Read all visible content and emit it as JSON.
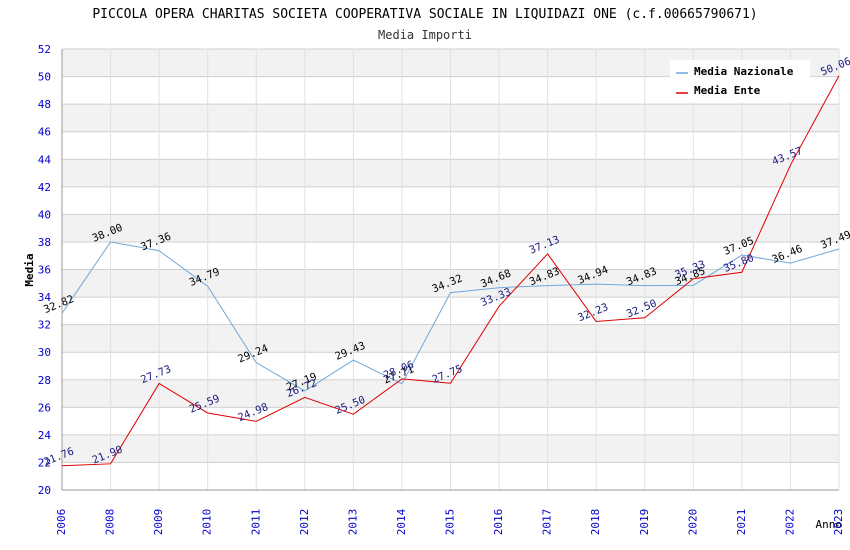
{
  "colors": {
    "nazionale": "#6fa8dc",
    "ente": "#e00000",
    "label_nazionale": "#000000",
    "label_ente": "#1a1a80",
    "axis_tick": "#0000cc",
    "band": "#f2f2f2"
  },
  "chart_data": {
    "type": "line",
    "title": "PICCOLA OPERA CHARITAS SOCIETA COOPERATIVA SOCIALE IN LIQUIDAZI ONE (c.f.00665790671)",
    "subtitle": "Media Importi",
    "xlabel": "Anno",
    "ylabel": "Media",
    "ylim": [
      20,
      52
    ],
    "ytick_step": 2,
    "grid": true,
    "legend_position": "top-right",
    "categories": [
      "2006",
      "2008",
      "2009",
      "2010",
      "2011",
      "2012",
      "2013",
      "2014",
      "2015",
      "2016",
      "2017",
      "2018",
      "2019",
      "2020",
      "2021",
      "2022",
      "2023"
    ],
    "series": [
      {
        "name": "Media Nazionale",
        "color_key": "nazionale",
        "label_color_key": "label_nazionale",
        "values": [
          32.82,
          38.0,
          37.36,
          34.79,
          29.24,
          27.19,
          29.43,
          27.71,
          34.32,
          34.68,
          34.83,
          34.94,
          34.83,
          34.85,
          37.05,
          36.46,
          37.49
        ],
        "labels": [
          "32.82",
          "38.00",
          "37.36",
          "34.79",
          "29.24",
          "27.19",
          "29.43",
          "27.71",
          "34.32",
          "34.68",
          "34.83",
          "34.94",
          "34.83",
          "34.85",
          "37.05",
          "36.46",
          "37.49"
        ]
      },
      {
        "name": "Media Ente",
        "color_key": "ente",
        "label_color_key": "label_ente",
        "values": [
          21.76,
          21.9,
          27.73,
          25.59,
          24.98,
          26.72,
          25.5,
          28.06,
          27.75,
          33.33,
          37.13,
          32.23,
          32.5,
          35.33,
          35.8,
          43.57,
          50.06
        ],
        "labels": [
          "21.76",
          "21.90",
          "27.73",
          "25.59",
          "24.98",
          "26.72",
          "25.50",
          "28.06",
          "27.75",
          "33.33",
          "37.13",
          "32.23",
          "32.50",
          "35.33",
          "35.80",
          "43.57",
          "50.06"
        ]
      }
    ]
  }
}
